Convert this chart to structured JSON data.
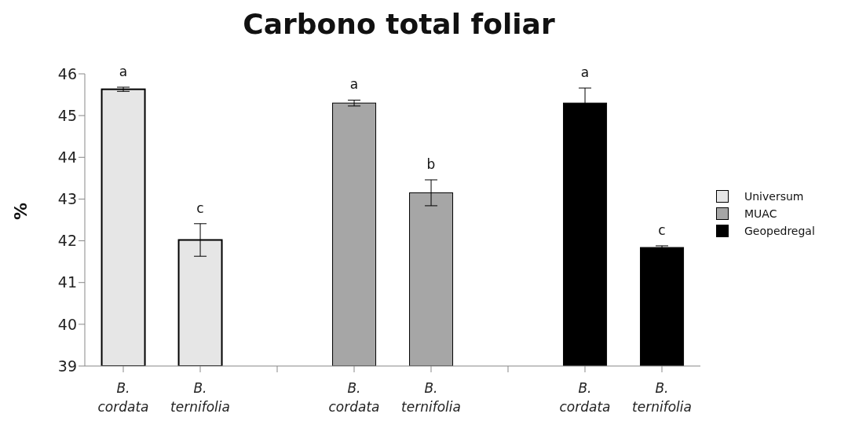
{
  "chart_data": {
    "type": "bar",
    "title": "Carbono total foliar",
    "ylabel": "%",
    "categories": [
      "B. cordata",
      "B. ternifolia",
      null,
      "B. cordata",
      "B. ternifolia",
      null,
      "B. cordata",
      "B. ternifolia"
    ],
    "series": [
      {
        "name": "Universum",
        "color": "#e6e6e6",
        "values": [
          45.63,
          42.02,
          null,
          null,
          null,
          null,
          null,
          null
        ],
        "errors": [
          0.05,
          0.39,
          null,
          null,
          null,
          null,
          null,
          null
        ],
        "value_labels": [
          "a",
          "c",
          null,
          null,
          null,
          null,
          null,
          null
        ]
      },
      {
        "name": "MUAC",
        "color": "#a6a6a6",
        "values": [
          null,
          null,
          null,
          45.3,
          43.15,
          null,
          null,
          null
        ],
        "errors": [
          null,
          null,
          null,
          0.07,
          0.31,
          null,
          null,
          null
        ],
        "value_labels": [
          null,
          null,
          null,
          "a",
          "b",
          null,
          null,
          null
        ]
      },
      {
        "name": "Geopedregal",
        "color": "#000000",
        "values": [
          null,
          null,
          null,
          null,
          null,
          null,
          45.3,
          41.84
        ],
        "errors": [
          null,
          null,
          null,
          null,
          null,
          null,
          0.36,
          0.04
        ],
        "value_labels": [
          null,
          null,
          null,
          null,
          null,
          null,
          "a",
          "c"
        ]
      }
    ],
    "ylim": [
      39,
      46
    ],
    "yticks": [
      39,
      40,
      41,
      42,
      43,
      44,
      45,
      46
    ],
    "grid": false,
    "legend": "right"
  }
}
